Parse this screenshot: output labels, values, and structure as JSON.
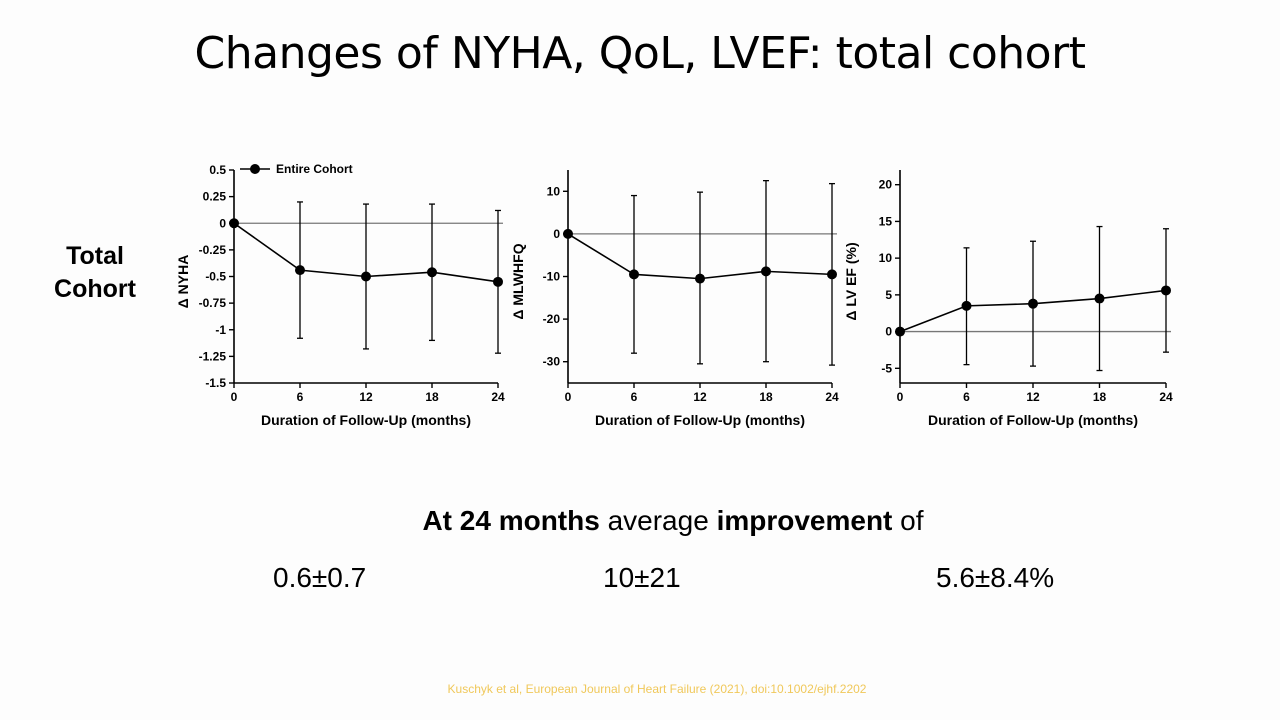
{
  "slide": {
    "title": "Changes of NYHA, QoL, LVEF: total cohort",
    "row_label_line1": "Total",
    "row_label_line2": "Cohort"
  },
  "summary": {
    "prefix_bold": "At 24 months",
    "middle": " average ",
    "bold2": "improvement",
    "suffix": " of",
    "stats": [
      "0.6±0.7",
      "10±21",
      "5.6±8.4%"
    ]
  },
  "citation": "Kuschyk et al, European Journal of Heart Failure (2021), doi:10.1002/ejhf.2202",
  "chart_data": [
    {
      "type": "line",
      "xlabel": "Duration of Follow-Up (months)",
      "ylabel": "Δ NYHA",
      "legend": {
        "entries": [
          "Entire Cohort"
        ],
        "placement": "top-left"
      },
      "x": [
        0,
        6,
        12,
        18,
        24
      ],
      "xticks": [
        "0",
        "6",
        "12",
        "18",
        "24"
      ],
      "xlim": [
        0,
        24
      ],
      "ylim": [
        -1.5,
        0.5
      ],
      "yticks": [
        0.5,
        0.25,
        0,
        -0.25,
        -0.5,
        -0.75,
        -1,
        -1.25,
        -1.5
      ],
      "ytick_labels": [
        "0.5",
        "0.25",
        "0",
        "-0.25",
        "-0.5",
        "-0.75",
        "-1",
        "-1.25",
        "-1.5"
      ],
      "zero_line": 0,
      "series": [
        {
          "name": "Entire Cohort",
          "values": [
            0,
            -0.44,
            -0.5,
            -0.46,
            -0.55
          ],
          "err_low": [
            0,
            -1.08,
            -1.18,
            -1.1,
            -1.22
          ],
          "err_high": [
            0,
            0.2,
            0.18,
            0.18,
            0.12
          ]
        }
      ]
    },
    {
      "type": "line",
      "xlabel": "Duration of Follow-Up (months)",
      "ylabel": "Δ MLWHFQ",
      "x": [
        0,
        6,
        12,
        18,
        24
      ],
      "xticks": [
        "0",
        "6",
        "12",
        "18",
        "24"
      ],
      "xlim": [
        0,
        24
      ],
      "ylim": [
        -35,
        15
      ],
      "yticks": [
        10,
        0,
        -10,
        -20,
        -30
      ],
      "ytick_labels": [
        "10",
        "0",
        "-10",
        "-20",
        "-30"
      ],
      "zero_line": 0,
      "series": [
        {
          "values": [
            0,
            -9.5,
            -10.5,
            -8.8,
            -9.5
          ],
          "err_low": [
            0,
            -28,
            -30.5,
            -30,
            -30.8
          ],
          "err_high": [
            0,
            9,
            9.8,
            12.5,
            11.8
          ]
        }
      ]
    },
    {
      "type": "line",
      "xlabel": "Duration of Follow-Up (months)",
      "ylabel": "Δ LV EF (%)",
      "x": [
        0,
        6,
        12,
        18,
        24
      ],
      "xticks": [
        "0",
        "6",
        "12",
        "18",
        "24"
      ],
      "xlim": [
        0,
        24
      ],
      "ylim": [
        -7,
        22
      ],
      "yticks": [
        20,
        15,
        10,
        5,
        0,
        -5
      ],
      "ytick_labels": [
        "20",
        "15",
        "10",
        "5",
        "0",
        "-5"
      ],
      "zero_line": 0,
      "series": [
        {
          "values": [
            0,
            3.5,
            3.8,
            4.5,
            5.6
          ],
          "err_low": [
            0,
            -4.5,
            -4.7,
            -5.3,
            -2.8
          ],
          "err_high": [
            0,
            11.4,
            12.3,
            14.3,
            14
          ]
        }
      ]
    }
  ]
}
